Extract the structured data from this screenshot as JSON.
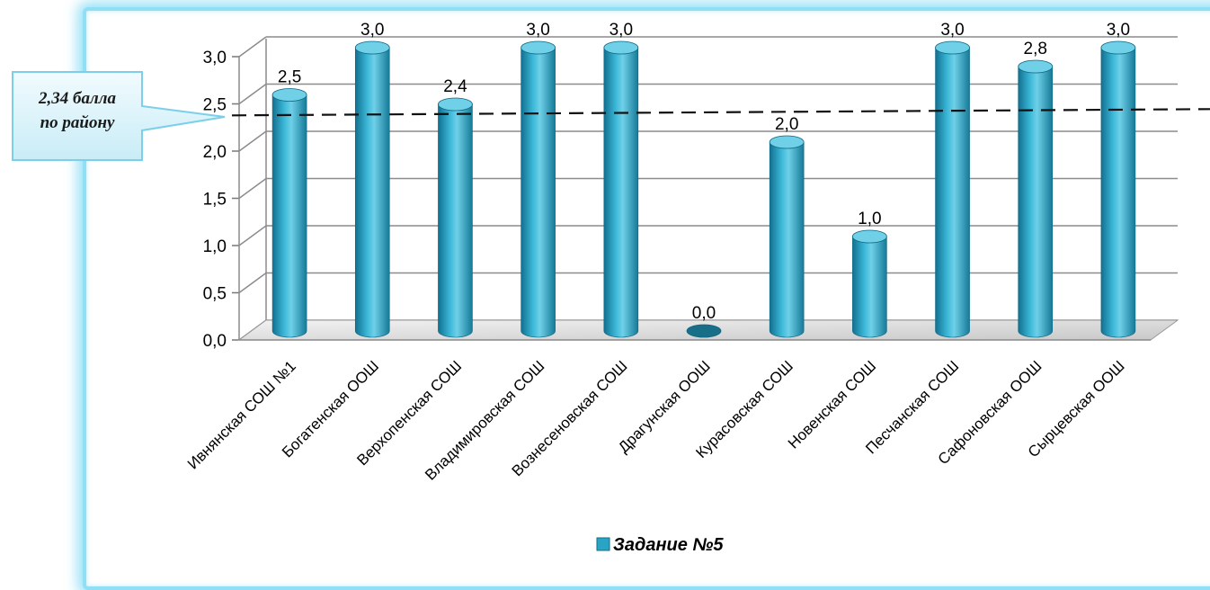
{
  "chart_data": {
    "type": "bar",
    "categories": [
      "Ивнянская СОШ №1",
      "Богатенская ООШ",
      "Верхопенская СОШ",
      "Владимировская СОШ",
      "Вознесеновская СОШ",
      "Драгунская ООШ",
      "Курасовская СОШ",
      "Новенская СОШ",
      "Песчанская СОШ",
      "Сафоновская ООШ",
      "Сырцевская ООШ"
    ],
    "series": [
      {
        "name": "Задание №5",
        "values": [
          2.5,
          3.0,
          2.4,
          3.0,
          3.0,
          0.0,
          2.0,
          1.0,
          3.0,
          2.8,
          3.0
        ]
      }
    ],
    "data_labels": [
      "2,5",
      "3,0",
      "2,4",
      "3,0",
      "3,0",
      "0,0",
      "2,0",
      "1,0",
      "3,0",
      "2,8",
      "3,0"
    ],
    "y_ticks": [
      "0,0",
      "0,5",
      "1,0",
      "1,5",
      "2,0",
      "2,5",
      "3,0"
    ],
    "ylim": [
      0,
      3.0
    ],
    "reference_line": {
      "value": 2.34,
      "style": "dashed"
    },
    "callout": {
      "line1": "2,34 балла",
      "line2": "по району"
    },
    "legend": {
      "label": "Задание №5",
      "position": "bottom"
    },
    "grid": true,
    "colors": {
      "bar": "#2aa4c4",
      "bar_dark": "#126e88",
      "bar_light": "#8fdaee",
      "frame_glow": "#8fdff5",
      "callout_fill": "#dff4fb"
    }
  }
}
